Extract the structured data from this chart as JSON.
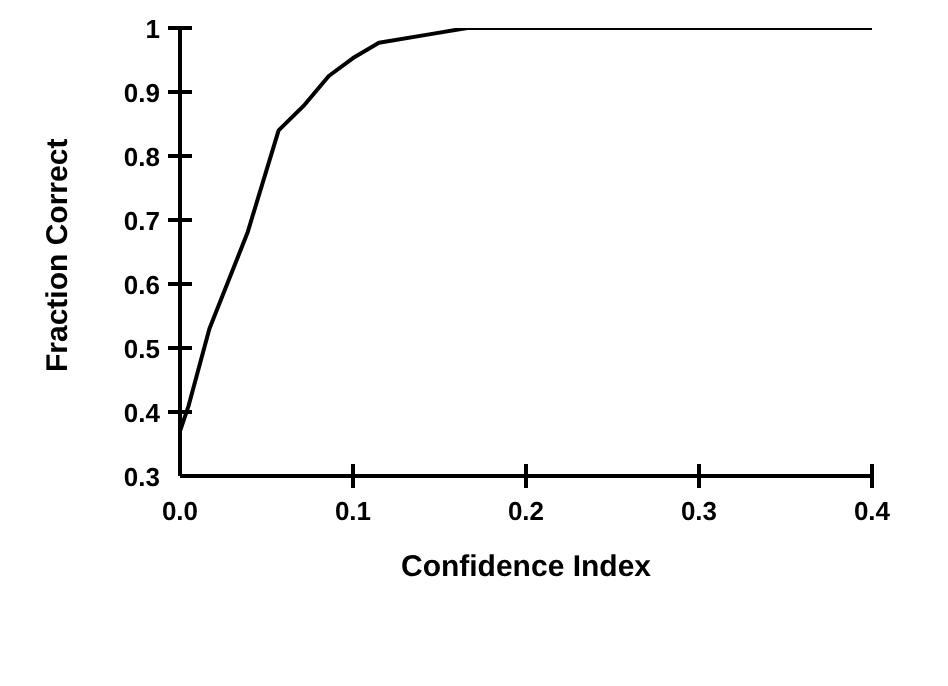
{
  "chart_data": {
    "type": "line",
    "xlabel": "Confidence Index",
    "ylabel": "Fraction Correct",
    "x": [
      0,
      0.005,
      0.017,
      0.039,
      0.057,
      0.072,
      0.086,
      0.1,
      0.115,
      0.144,
      0.166,
      0.256,
      0.28,
      0.4
    ],
    "series": [
      {
        "color": "#000000",
        "values": [
          0.37,
          0.41,
          0.53,
          0.68,
          0.84,
          0.88,
          0.925,
          0.953,
          0.977,
          0.99,
          1.0,
          1.0,
          1.0,
          1.0
        ]
      }
    ],
    "xlim": [
      0,
      0.4
    ],
    "xticks": [
      {
        "value": 0,
        "label": "0.0"
      },
      0.1,
      0.2,
      0.3,
      0.4
    ],
    "ylim": [
      0.3,
      1
    ],
    "yticks": [
      0.3,
      0.4,
      0.5,
      0.6,
      0.7,
      0.8,
      0.9,
      1
    ],
    "grid": false,
    "legend": false,
    "marker": "none",
    "line_style": "solid"
  }
}
